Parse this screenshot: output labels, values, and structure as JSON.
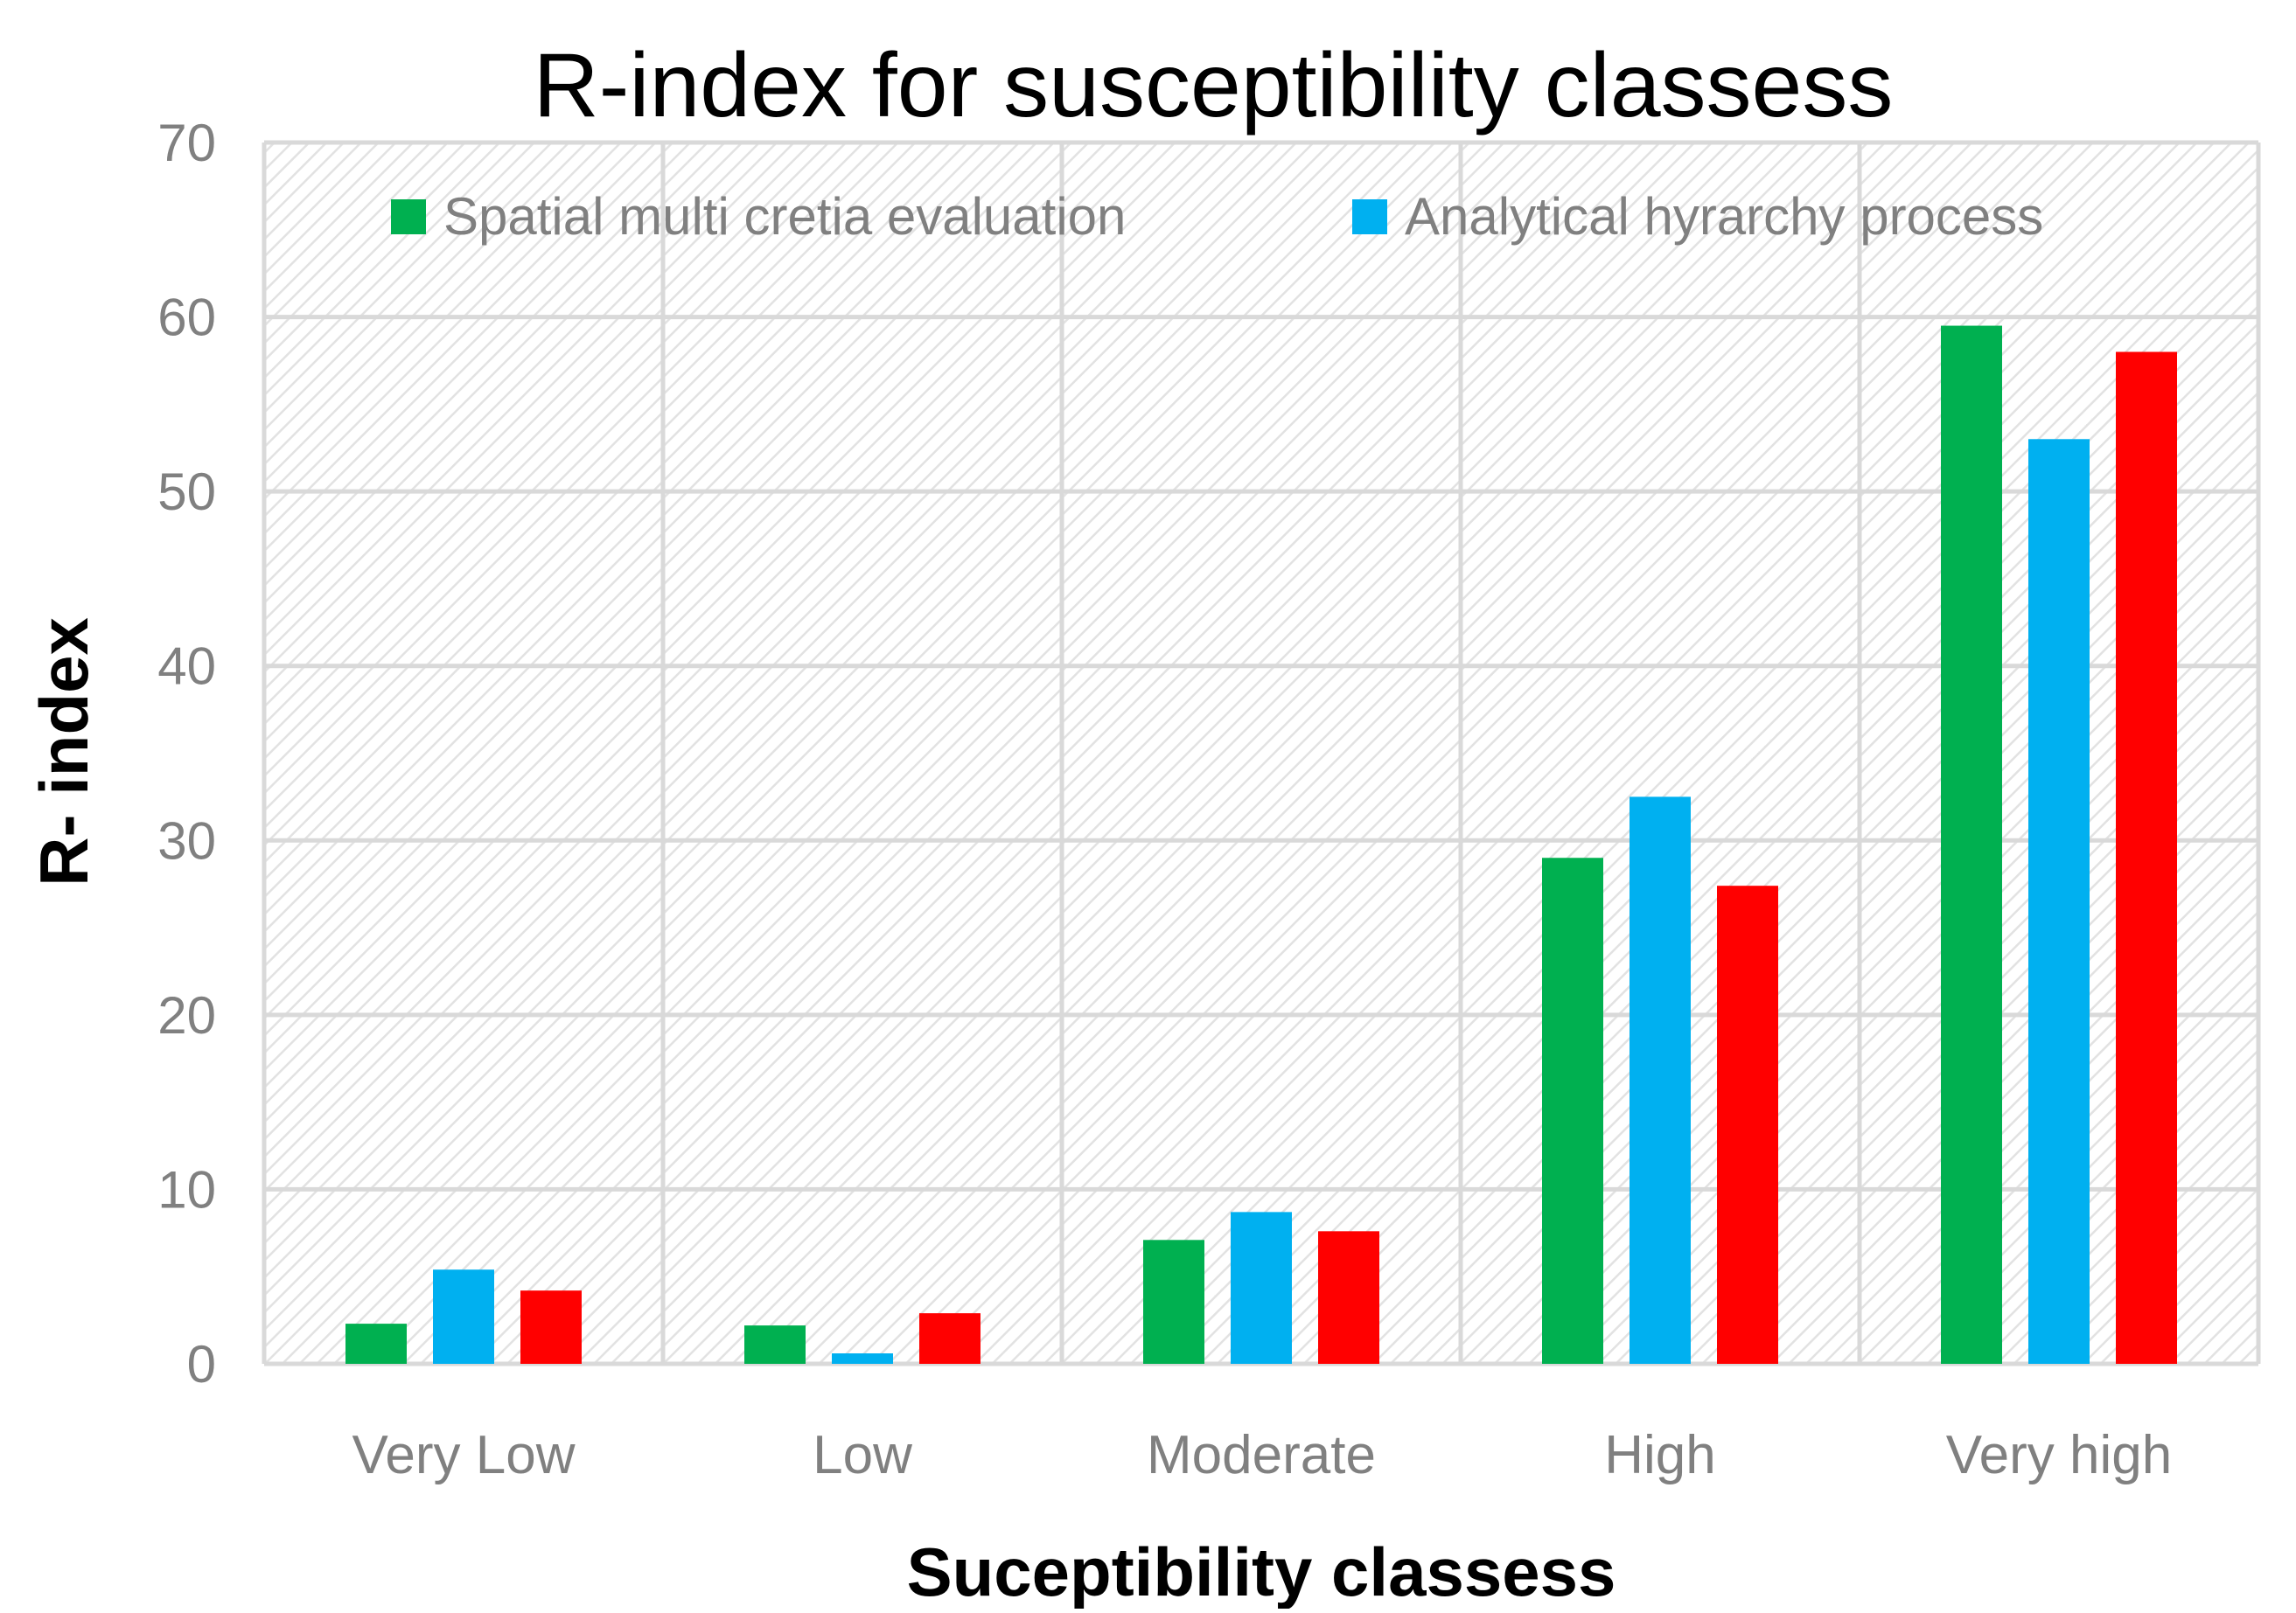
{
  "chart_data": {
    "type": "bar",
    "title": "R-index for susceptibility classess",
    "xlabel": "Suceptibility classess",
    "ylabel": "R- index",
    "ylim": [
      0,
      70
    ],
    "yticks": [
      "0",
      "10",
      "20",
      "30",
      "40",
      "50",
      "60",
      "70"
    ],
    "categories": [
      "Very Low",
      "Low",
      "Moderate",
      "High",
      "Very high"
    ],
    "series": [
      {
        "name": "Spatial multi cretia evaluation",
        "color": "#00b050",
        "values": [
          2.3,
          2.2,
          7.1,
          29.0,
          59.5
        ]
      },
      {
        "name": "Analytical hyrarchy process",
        "color": "#00b0f0",
        "values": [
          5.4,
          0.6,
          8.7,
          32.5,
          53.0
        ]
      },
      {
        "name": "",
        "color": "#ff0000",
        "values": [
          4.2,
          2.9,
          7.6,
          27.4,
          58.0
        ]
      }
    ],
    "legend_position": "top",
    "grid": true
  }
}
